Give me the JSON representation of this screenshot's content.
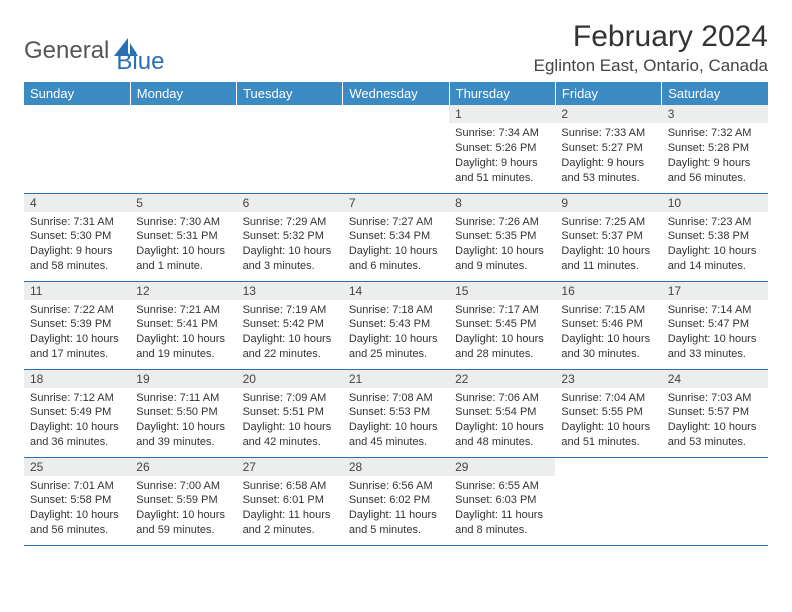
{
  "brand": {
    "general": "General",
    "blue": "Blue"
  },
  "title": "February 2024",
  "location": "Eglinton East, Ontario, Canada",
  "colors": {
    "header_bg": "#3b8ac4",
    "header_text": "#ffffff",
    "daynum_bg": "#eceded",
    "border": "#2a6fb5",
    "logo_blue": "#2a6fb5",
    "logo_gray": "#555555"
  },
  "weekdays": [
    "Sunday",
    "Monday",
    "Tuesday",
    "Wednesday",
    "Thursday",
    "Friday",
    "Saturday"
  ],
  "weeks": [
    [
      null,
      null,
      null,
      null,
      {
        "n": "1",
        "sr": "Sunrise: 7:34 AM",
        "ss": "Sunset: 5:26 PM",
        "d1": "Daylight: 9 hours",
        "d2": "and 51 minutes."
      },
      {
        "n": "2",
        "sr": "Sunrise: 7:33 AM",
        "ss": "Sunset: 5:27 PM",
        "d1": "Daylight: 9 hours",
        "d2": "and 53 minutes."
      },
      {
        "n": "3",
        "sr": "Sunrise: 7:32 AM",
        "ss": "Sunset: 5:28 PM",
        "d1": "Daylight: 9 hours",
        "d2": "and 56 minutes."
      }
    ],
    [
      {
        "n": "4",
        "sr": "Sunrise: 7:31 AM",
        "ss": "Sunset: 5:30 PM",
        "d1": "Daylight: 9 hours",
        "d2": "and 58 minutes."
      },
      {
        "n": "5",
        "sr": "Sunrise: 7:30 AM",
        "ss": "Sunset: 5:31 PM",
        "d1": "Daylight: 10 hours",
        "d2": "and 1 minute."
      },
      {
        "n": "6",
        "sr": "Sunrise: 7:29 AM",
        "ss": "Sunset: 5:32 PM",
        "d1": "Daylight: 10 hours",
        "d2": "and 3 minutes."
      },
      {
        "n": "7",
        "sr": "Sunrise: 7:27 AM",
        "ss": "Sunset: 5:34 PM",
        "d1": "Daylight: 10 hours",
        "d2": "and 6 minutes."
      },
      {
        "n": "8",
        "sr": "Sunrise: 7:26 AM",
        "ss": "Sunset: 5:35 PM",
        "d1": "Daylight: 10 hours",
        "d2": "and 9 minutes."
      },
      {
        "n": "9",
        "sr": "Sunrise: 7:25 AM",
        "ss": "Sunset: 5:37 PM",
        "d1": "Daylight: 10 hours",
        "d2": "and 11 minutes."
      },
      {
        "n": "10",
        "sr": "Sunrise: 7:23 AM",
        "ss": "Sunset: 5:38 PM",
        "d1": "Daylight: 10 hours",
        "d2": "and 14 minutes."
      }
    ],
    [
      {
        "n": "11",
        "sr": "Sunrise: 7:22 AM",
        "ss": "Sunset: 5:39 PM",
        "d1": "Daylight: 10 hours",
        "d2": "and 17 minutes."
      },
      {
        "n": "12",
        "sr": "Sunrise: 7:21 AM",
        "ss": "Sunset: 5:41 PM",
        "d1": "Daylight: 10 hours",
        "d2": "and 19 minutes."
      },
      {
        "n": "13",
        "sr": "Sunrise: 7:19 AM",
        "ss": "Sunset: 5:42 PM",
        "d1": "Daylight: 10 hours",
        "d2": "and 22 minutes."
      },
      {
        "n": "14",
        "sr": "Sunrise: 7:18 AM",
        "ss": "Sunset: 5:43 PM",
        "d1": "Daylight: 10 hours",
        "d2": "and 25 minutes."
      },
      {
        "n": "15",
        "sr": "Sunrise: 7:17 AM",
        "ss": "Sunset: 5:45 PM",
        "d1": "Daylight: 10 hours",
        "d2": "and 28 minutes."
      },
      {
        "n": "16",
        "sr": "Sunrise: 7:15 AM",
        "ss": "Sunset: 5:46 PM",
        "d1": "Daylight: 10 hours",
        "d2": "and 30 minutes."
      },
      {
        "n": "17",
        "sr": "Sunrise: 7:14 AM",
        "ss": "Sunset: 5:47 PM",
        "d1": "Daylight: 10 hours",
        "d2": "and 33 minutes."
      }
    ],
    [
      {
        "n": "18",
        "sr": "Sunrise: 7:12 AM",
        "ss": "Sunset: 5:49 PM",
        "d1": "Daylight: 10 hours",
        "d2": "and 36 minutes."
      },
      {
        "n": "19",
        "sr": "Sunrise: 7:11 AM",
        "ss": "Sunset: 5:50 PM",
        "d1": "Daylight: 10 hours",
        "d2": "and 39 minutes."
      },
      {
        "n": "20",
        "sr": "Sunrise: 7:09 AM",
        "ss": "Sunset: 5:51 PM",
        "d1": "Daylight: 10 hours",
        "d2": "and 42 minutes."
      },
      {
        "n": "21",
        "sr": "Sunrise: 7:08 AM",
        "ss": "Sunset: 5:53 PM",
        "d1": "Daylight: 10 hours",
        "d2": "and 45 minutes."
      },
      {
        "n": "22",
        "sr": "Sunrise: 7:06 AM",
        "ss": "Sunset: 5:54 PM",
        "d1": "Daylight: 10 hours",
        "d2": "and 48 minutes."
      },
      {
        "n": "23",
        "sr": "Sunrise: 7:04 AM",
        "ss": "Sunset: 5:55 PM",
        "d1": "Daylight: 10 hours",
        "d2": "and 51 minutes."
      },
      {
        "n": "24",
        "sr": "Sunrise: 7:03 AM",
        "ss": "Sunset: 5:57 PM",
        "d1": "Daylight: 10 hours",
        "d2": "and 53 minutes."
      }
    ],
    [
      {
        "n": "25",
        "sr": "Sunrise: 7:01 AM",
        "ss": "Sunset: 5:58 PM",
        "d1": "Daylight: 10 hours",
        "d2": "and 56 minutes."
      },
      {
        "n": "26",
        "sr": "Sunrise: 7:00 AM",
        "ss": "Sunset: 5:59 PM",
        "d1": "Daylight: 10 hours",
        "d2": "and 59 minutes."
      },
      {
        "n": "27",
        "sr": "Sunrise: 6:58 AM",
        "ss": "Sunset: 6:01 PM",
        "d1": "Daylight: 11 hours",
        "d2": "and 2 minutes."
      },
      {
        "n": "28",
        "sr": "Sunrise: 6:56 AM",
        "ss": "Sunset: 6:02 PM",
        "d1": "Daylight: 11 hours",
        "d2": "and 5 minutes."
      },
      {
        "n": "29",
        "sr": "Sunrise: 6:55 AM",
        "ss": "Sunset: 6:03 PM",
        "d1": "Daylight: 11 hours",
        "d2": "and 8 minutes."
      },
      null,
      null
    ]
  ]
}
